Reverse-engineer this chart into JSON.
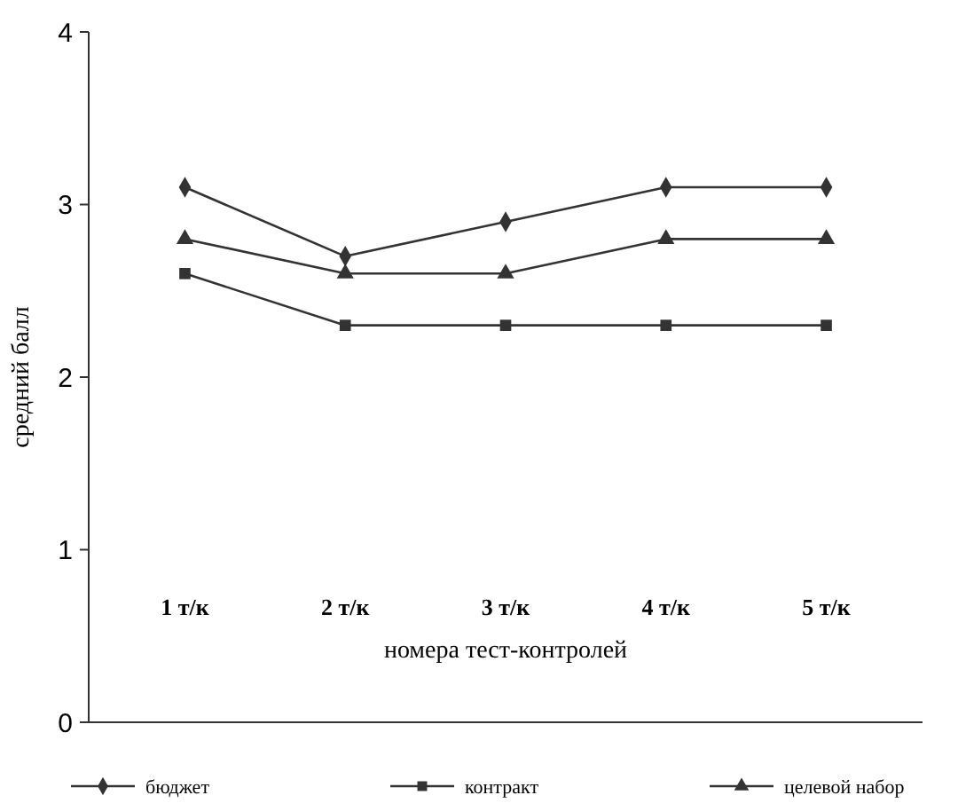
{
  "chart_data": {
    "type": "line",
    "ylabel": "средний балл",
    "xlabel": "номера тест-контролей",
    "categories": [
      "1 т/к",
      "2 т/к",
      "3 т/к",
      "4 т/к",
      "5 т/к"
    ],
    "series": [
      {
        "name": "бюджет",
        "color": "#333333",
        "marker": "diamond",
        "values": [
          3.1,
          2.7,
          2.9,
          3.1,
          3.1
        ]
      },
      {
        "name": "контракт",
        "color": "#333333",
        "marker": "square",
        "values": [
          2.6,
          2.3,
          2.3,
          2.3,
          2.3
        ]
      },
      {
        "name": "целевой набор",
        "color": "#333333",
        "marker": "triangle",
        "values": [
          2.8,
          2.6,
          2.6,
          2.8,
          2.8
        ]
      }
    ],
    "ylim": [
      0,
      4
    ],
    "yticks": [
      0,
      1,
      2,
      3,
      4
    ],
    "grid": false,
    "legend": "bottom",
    "line_style": "solid"
  }
}
